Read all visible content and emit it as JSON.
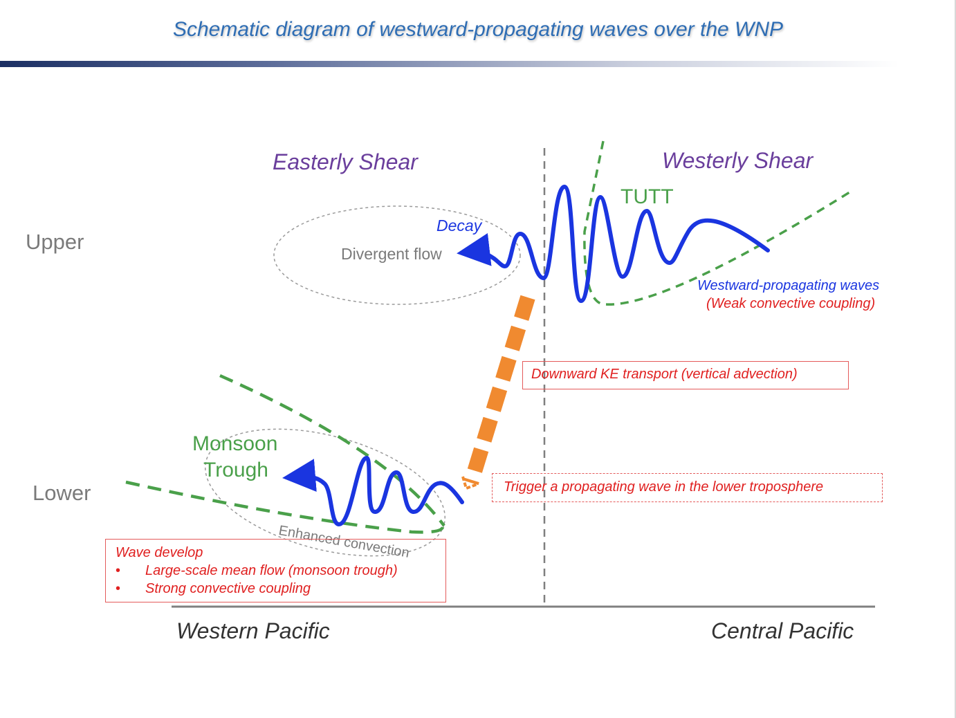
{
  "title": "Schematic diagram of westward-propagating waves over the WNP",
  "regions": {
    "easterly_shear": "Easterly Shear",
    "westerly_shear": "Westerly Shear"
  },
  "levels": {
    "upper": "Upper",
    "lower": "Lower"
  },
  "labels": {
    "tutt": "TUTT",
    "decay": "Decay",
    "divergent_flow": "Divergent flow",
    "monsoon_trough": [
      "Monsoon",
      "Trough"
    ],
    "enhanced_convection": "Enhanced convection",
    "westward_waves": "Westward-propagating waves",
    "weak_coupling": "(Weak convective coupling)",
    "downward_ke": "Downward KE transport (vertical advection)",
    "trigger": "Trigger a propagating wave in the lower troposphere"
  },
  "wave_develop": {
    "heading": "Wave develop",
    "items": [
      "Large-scale mean flow (monsoon trough)",
      "Strong convective coupling"
    ]
  },
  "axis": {
    "west": "Western Pacific",
    "east": "Central Pacific"
  },
  "colors": {
    "title": "#2e6db4",
    "wave": "#1a35e0",
    "trough_line": "#4aa04a",
    "ke_arrow": "#f08a30",
    "annotation": "#e02020",
    "shear": "#6a3e9c"
  }
}
